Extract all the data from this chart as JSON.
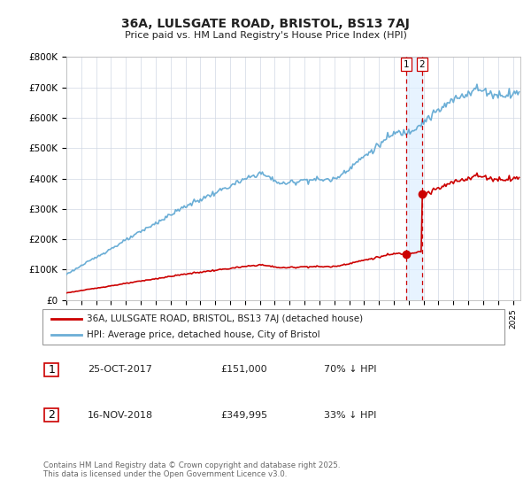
{
  "title": "36A, LULSGATE ROAD, BRISTOL, BS13 7AJ",
  "subtitle": "Price paid vs. HM Land Registry's House Price Index (HPI)",
  "ylim": [
    0,
    800000
  ],
  "yticks": [
    0,
    100000,
    200000,
    300000,
    400000,
    500000,
    600000,
    700000,
    800000
  ],
  "ytick_labels": [
    "£0",
    "£100K",
    "£200K",
    "£300K",
    "£400K",
    "£500K",
    "£600K",
    "£700K",
    "£800K"
  ],
  "xlim_start": 1995.0,
  "xlim_end": 2025.5,
  "hpi_color": "#6baed6",
  "price_color": "#cc0000",
  "transaction1_x": 2017.81,
  "transaction1_price": 151000,
  "transaction2_x": 2018.89,
  "transaction2_price": 349995,
  "legend_label1": "36A, LULSGATE ROAD, BRISTOL, BS13 7AJ (detached house)",
  "legend_label2": "HPI: Average price, detached house, City of Bristol",
  "table_row1": [
    "1",
    "25-OCT-2017",
    "£151,000",
    "70% ↓ HPI"
  ],
  "table_row2": [
    "2",
    "16-NOV-2018",
    "£349,995",
    "33% ↓ HPI"
  ],
  "footer": "Contains HM Land Registry data © Crown copyright and database right 2025.\nThis data is licensed under the Open Government Licence v3.0.",
  "background_color": "#ffffff",
  "grid_color": "#d0d8e4"
}
